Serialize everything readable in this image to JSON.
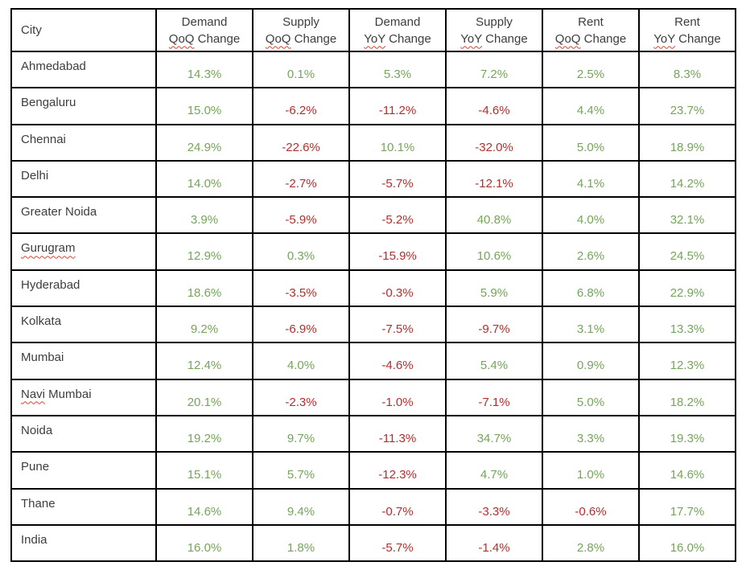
{
  "page": {
    "background": "#ffffff"
  },
  "table": {
    "name": "city-wise-demand-supply-rent-change-table",
    "columns": [
      {
        "id": "city",
        "label": "City"
      },
      {
        "id": "demand-qoq",
        "line1": "Demand",
        "line2_word": "QoQ",
        "line2_rest": "Change"
      },
      {
        "id": "supply-qoq",
        "line1": "Supply",
        "line2_word": "QoQ",
        "line2_rest": "Change"
      },
      {
        "id": "demand-yoy",
        "line1": "Demand",
        "line2_word": "YoY",
        "line2_rest": "Change"
      },
      {
        "id": "supply-yoy",
        "line1": "Supply",
        "line2_word": "YoY",
        "line2_rest": "Change"
      },
      {
        "id": "rent-qoq",
        "line1": "Rent",
        "line2_word": "QoQ",
        "line2_rest": "Change"
      },
      {
        "id": "rent-yoy",
        "line1": "Rent",
        "line2_word": "YoY",
        "line2_rest": "Change"
      }
    ],
    "rows": [
      {
        "city": "Ahmedabad",
        "values": [
          "14.3%",
          "0.1%",
          "5.3%",
          "7.2%",
          "2.5%",
          "8.3%"
        ]
      },
      {
        "city": "Bengaluru",
        "values": [
          "15.0%",
          "-6.2%",
          "-11.2%",
          "-4.6%",
          "4.4%",
          "23.7%"
        ]
      },
      {
        "city": "Chennai",
        "values": [
          "24.9%",
          "-22.6%",
          "10.1%",
          "-32.0%",
          "5.0%",
          "18.9%"
        ]
      },
      {
        "city": "Delhi",
        "values": [
          "14.0%",
          "-2.7%",
          "-5.7%",
          "-12.1%",
          "4.1%",
          "14.2%"
        ]
      },
      {
        "city": "Greater Noida",
        "values": [
          "3.9%",
          "-5.9%",
          "-5.2%",
          "40.8%",
          "4.0%",
          "32.1%"
        ]
      },
      {
        "city": "Gurugram",
        "misspelled_part": "Gurugram",
        "rest_part": "",
        "values": [
          "12.9%",
          "0.3%",
          "-15.9%",
          "10.6%",
          "2.6%",
          "24.5%"
        ]
      },
      {
        "city": "Hyderabad",
        "values": [
          "18.6%",
          "-3.5%",
          "-0.3%",
          "5.9%",
          "6.8%",
          "22.9%"
        ]
      },
      {
        "city": "Kolkata",
        "values": [
          "9.2%",
          "-6.9%",
          "-7.5%",
          "-9.7%",
          "3.1%",
          "13.3%"
        ]
      },
      {
        "city": "Mumbai",
        "values": [
          "12.4%",
          "4.0%",
          "-4.6%",
          "5.4%",
          "0.9%",
          "12.3%"
        ]
      },
      {
        "city": "Navi Mumbai",
        "misspelled_part": "Navi",
        "rest_part": " Mumbai",
        "values": [
          "20.1%",
          "-2.3%",
          "-1.0%",
          "-7.1%",
          "5.0%",
          "18.2%"
        ]
      },
      {
        "city": "Noida",
        "values": [
          "19.2%",
          "9.7%",
          "-11.3%",
          "34.7%",
          "3.3%",
          "19.3%"
        ]
      },
      {
        "city": "Pune",
        "values": [
          "15.1%",
          "5.7%",
          "-12.3%",
          "4.7%",
          "1.0%",
          "14.6%"
        ]
      },
      {
        "city": "Thane",
        "values": [
          "14.6%",
          "9.4%",
          "-0.7%",
          "-3.3%",
          "-0.6%",
          "17.7%"
        ]
      },
      {
        "city": "India",
        "values": [
          "16.0%",
          "1.8%",
          "-5.7%",
          "-1.4%",
          "2.8%",
          "16.0%"
        ]
      }
    ]
  },
  "colors": {
    "positive_value": "#76a45b",
    "negative_value": "#b52e2e",
    "header_text": "#3d3d3d",
    "body_text": "#3d3d3d",
    "table_border": "#000000",
    "spellcheck_underline": "#e0442e",
    "page_background": "#ffffff"
  }
}
